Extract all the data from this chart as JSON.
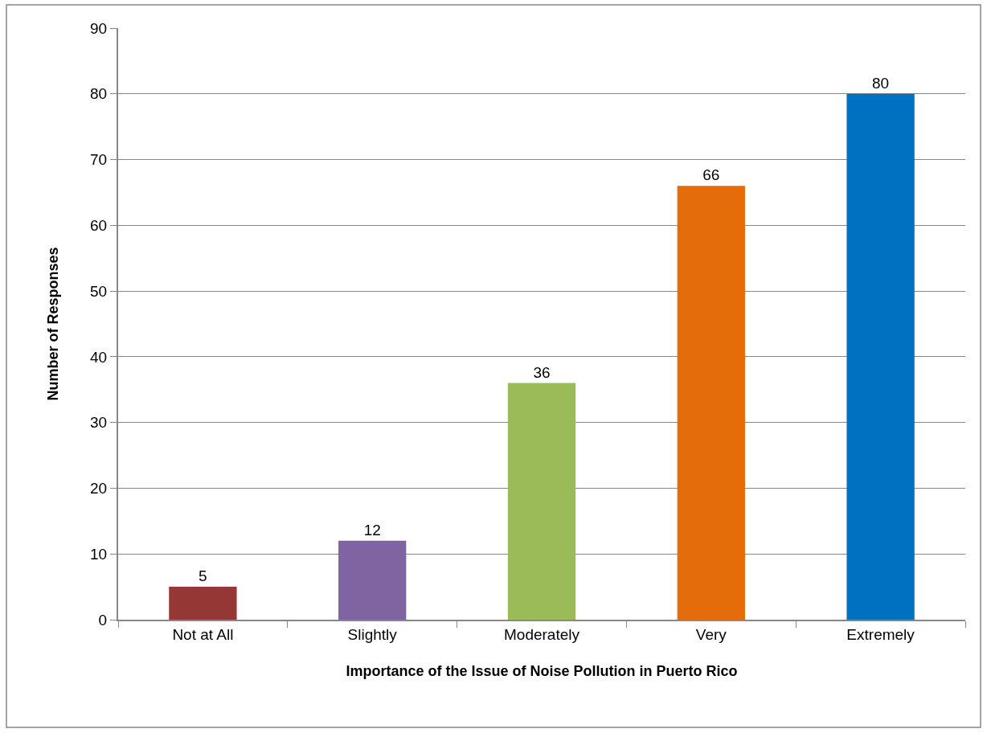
{
  "chart_data": {
    "type": "bar",
    "xlabel": "Importance of the Issue of Noise Pollution in Puerto Rico",
    "ylabel": "Number of Responses",
    "categories": [
      "Not at All",
      "Slightly",
      "Moderately",
      "Very",
      "Extremely"
    ],
    "values": [
      5,
      12,
      36,
      66,
      80
    ],
    "colors": [
      "#953735",
      "#8064a2",
      "#9bbb59",
      "#e46c0a",
      "#0070c0"
    ],
    "ylim": [
      0,
      90
    ],
    "yticks": [
      0,
      10,
      20,
      30,
      40,
      50,
      60,
      70,
      80,
      90
    ],
    "grid": "y",
    "data_labels": true
  }
}
